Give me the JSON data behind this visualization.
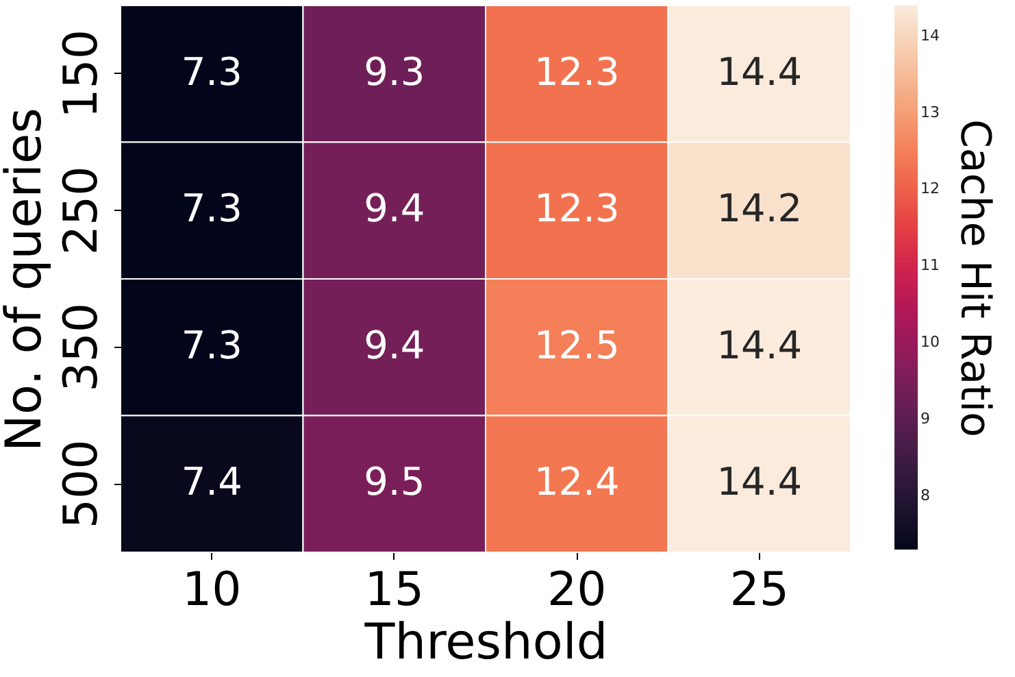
{
  "chart_data": {
    "type": "heatmap",
    "xlabel": "Threshold",
    "ylabel": "No. of queries",
    "clabel": "Cache Hit Ratio",
    "categories": [
      "10",
      "15",
      "20",
      "25"
    ],
    "y_categories": [
      "150",
      "250",
      "350",
      "500"
    ],
    "cells": [
      [
        7.3,
        9.3,
        12.3,
        14.4
      ],
      [
        7.3,
        9.4,
        12.3,
        14.2
      ],
      [
        7.3,
        9.4,
        12.5,
        14.4
      ],
      [
        7.4,
        9.5,
        12.4,
        14.4
      ]
    ],
    "data_labels": true,
    "clim": [
      7.3,
      14.4
    ],
    "cticks": [
      8,
      9,
      10,
      11,
      12,
      13,
      14
    ]
  }
}
